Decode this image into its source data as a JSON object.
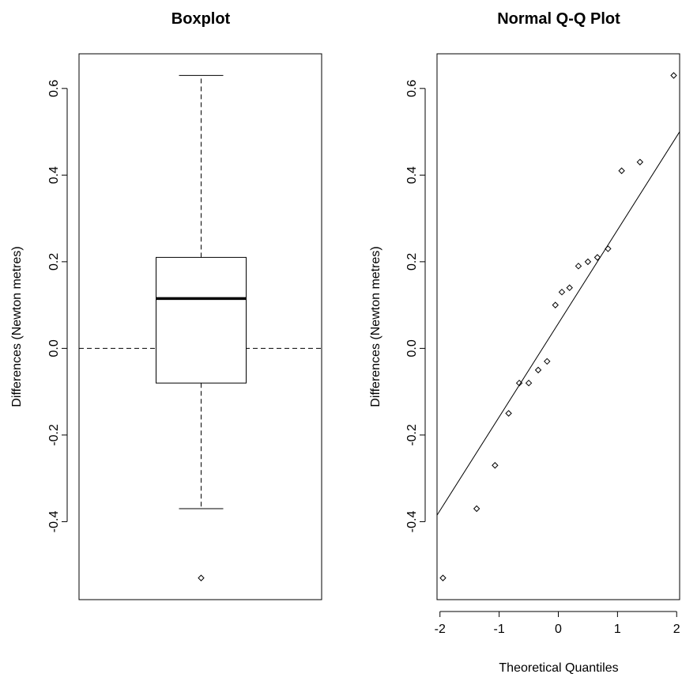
{
  "chart_data": [
    {
      "type": "boxplot",
      "title": "Boxplot",
      "ylabel": "Differences (Newton metres)",
      "xlabel": "",
      "ylim": [
        -0.58,
        0.68
      ],
      "yticks": [
        -0.4,
        -0.2,
        0.0,
        0.2,
        0.4,
        0.6
      ],
      "ytick_labels": [
        "-0.4",
        "-0.2",
        "0.0",
        "0.2",
        "0.4",
        "0.6"
      ],
      "box": {
        "whisker_low": -0.37,
        "q1": -0.08,
        "median": 0.115,
        "q3": 0.21,
        "whisker_high": 0.63
      },
      "outliers": [
        -0.53
      ],
      "reference_line": {
        "y": 0.0,
        "style": "dashed"
      },
      "grid": false
    },
    {
      "type": "scatter",
      "title": "Normal Q-Q Plot",
      "xlabel": "Theoretical Quantiles",
      "ylabel": "Differences (Newton metres)",
      "xlim": [
        -2.05,
        2.05
      ],
      "ylim": [
        -0.58,
        0.68
      ],
      "xticks": [
        -2,
        -1,
        0,
        1,
        2
      ],
      "xtick_labels": [
        "-2",
        "-1",
        "0",
        "1",
        "2"
      ],
      "yticks": [
        -0.4,
        -0.2,
        0.0,
        0.2,
        0.4,
        0.6
      ],
      "ytick_labels": [
        "-0.4",
        "-0.2",
        "0.0",
        "0.2",
        "0.4",
        "0.6"
      ],
      "points": [
        {
          "x": -1.95,
          "y": -0.53
        },
        {
          "x": -1.38,
          "y": -0.37
        },
        {
          "x": -1.07,
          "y": -0.27
        },
        {
          "x": -0.84,
          "y": -0.15
        },
        {
          "x": -0.66,
          "y": -0.08
        },
        {
          "x": -0.5,
          "y": -0.08
        },
        {
          "x": -0.34,
          "y": -0.05
        },
        {
          "x": -0.19,
          "y": -0.03
        },
        {
          "x": -0.05,
          "y": 0.1
        },
        {
          "x": 0.06,
          "y": 0.13
        },
        {
          "x": 0.19,
          "y": 0.14
        },
        {
          "x": 0.34,
          "y": 0.19
        },
        {
          "x": 0.5,
          "y": 0.2
        },
        {
          "x": 0.66,
          "y": 0.21
        },
        {
          "x": 0.84,
          "y": 0.23
        },
        {
          "x": 1.07,
          "y": 0.41
        },
        {
          "x": 1.38,
          "y": 0.43
        },
        {
          "x": 1.95,
          "y": 0.63
        }
      ],
      "reference_line": {
        "intercept": 0.0575,
        "slope": 0.2159
      },
      "grid": false
    }
  ]
}
